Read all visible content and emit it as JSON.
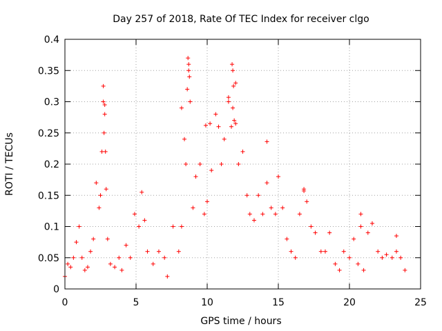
{
  "chart_data": {
    "type": "scatter",
    "title": "Day 257 of 2018, Rate Of TEC Index for receiver clgo",
    "xlabel": "GPS time / hours",
    "ylabel": "ROTI / TECUs",
    "xlim": [
      0,
      25
    ],
    "ylim": [
      0,
      0.4
    ],
    "grid": true,
    "marker": "+",
    "x_ticks": [
      0,
      5,
      10,
      15,
      20,
      25
    ],
    "x_tick_labels": [
      "0",
      "5",
      "10",
      "15",
      "20",
      "25"
    ],
    "y_ticks": [
      0,
      0.05,
      0.1,
      0.15,
      0.2,
      0.25,
      0.3,
      0.35,
      0.4
    ],
    "y_tick_labels": [
      "0",
      "0.05",
      "0.1",
      "0.15",
      "0.2",
      "0.25",
      "0.3",
      "0.35",
      "0.4"
    ],
    "series": [
      {
        "name": "ROTI",
        "color": "#ff0000",
        "x": [
          0.0,
          0.2,
          0.4,
          0.6,
          0.8,
          1.0,
          1.2,
          1.4,
          1.6,
          1.8,
          2.0,
          2.2,
          2.4,
          2.5,
          2.6,
          2.7,
          2.75,
          2.8,
          2.85,
          2.9,
          3.0,
          3.2,
          3.5,
          3.8,
          4.0,
          4.3,
          4.6,
          4.9,
          5.2,
          5.4,
          5.6,
          5.8,
          6.2,
          6.6,
          7.0,
          7.2,
          7.6,
          8.0,
          8.2,
          8.4,
          8.5,
          8.6,
          8.7,
          8.8,
          9.0,
          9.2,
          9.5,
          9.8,
          10.0,
          10.3,
          10.6,
          10.8,
          11.0,
          11.2,
          11.5,
          11.7,
          11.8,
          11.9,
          12.0,
          12.2,
          12.5,
          12.8,
          13.0,
          13.3,
          13.6,
          13.9,
          14.2,
          14.5,
          14.8,
          15.0,
          15.3,
          15.6,
          15.9,
          16.2,
          16.5,
          16.8,
          17.0,
          17.3,
          17.6,
          18.0,
          18.3,
          18.6,
          19.0,
          19.3,
          19.6,
          20.0,
          20.3,
          20.6,
          20.8,
          21.0,
          21.3,
          21.6,
          22.0,
          22.3,
          22.6,
          23.0,
          23.3,
          23.6,
          23.9,
          2.7,
          2.8,
          8.65,
          8.7,
          8.75,
          11.75,
          11.8,
          11.85,
          12.0,
          11.5,
          10.2,
          9.9,
          8.2,
          14.2,
          16.8,
          20.8,
          21.6,
          23.3
        ],
        "y": [
          0.02,
          0.04,
          0.035,
          0.05,
          0.075,
          0.1,
          0.05,
          0.03,
          0.035,
          0.06,
          0.08,
          0.17,
          0.13,
          0.15,
          0.22,
          0.3,
          0.25,
          0.28,
          0.22,
          0.16,
          0.08,
          0.04,
          0.035,
          0.05,
          0.03,
          0.07,
          0.05,
          0.12,
          0.1,
          0.155,
          0.11,
          0.06,
          0.04,
          0.06,
          0.05,
          0.02,
          0.1,
          0.06,
          0.1,
          0.24,
          0.2,
          0.32,
          0.35,
          0.3,
          0.13,
          0.18,
          0.2,
          0.12,
          0.14,
          0.19,
          0.28,
          0.26,
          0.2,
          0.24,
          0.3,
          0.26,
          0.29,
          0.27,
          0.33,
          0.2,
          0.22,
          0.15,
          0.12,
          0.11,
          0.15,
          0.12,
          0.17,
          0.13,
          0.12,
          0.18,
          0.13,
          0.08,
          0.06,
          0.05,
          0.12,
          0.16,
          0.14,
          0.1,
          0.09,
          0.06,
          0.06,
          0.09,
          0.04,
          0.03,
          0.06,
          0.05,
          0.08,
          0.04,
          0.1,
          0.03,
          0.09,
          0.105,
          0.06,
          0.05,
          0.055,
          0.05,
          0.06,
          0.05,
          0.03,
          0.325,
          0.295,
          0.37,
          0.36,
          0.34,
          0.36,
          0.35,
          0.325,
          0.265,
          0.307,
          0.265,
          0.262,
          0.29,
          0.236,
          0.157,
          0.12,
          0.105,
          0.085
        ]
      }
    ]
  }
}
